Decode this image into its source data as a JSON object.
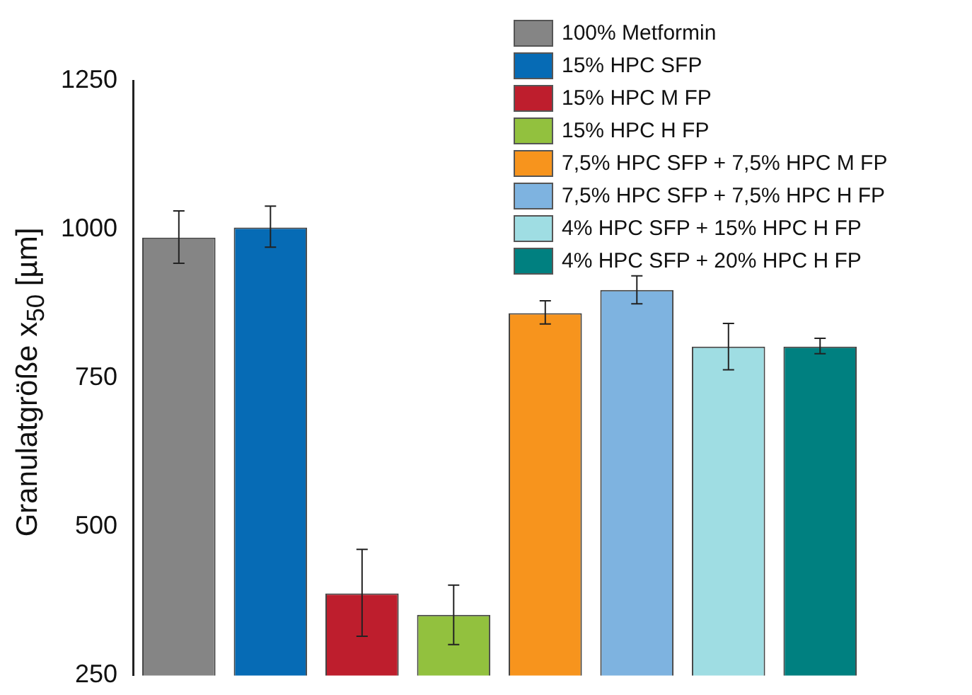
{
  "chart_data": {
    "type": "bar",
    "ylabel": "Granulatgröße x$_{50}$ [µm]",
    "categories": [
      null,
      null,
      null,
      null,
      null,
      null,
      null,
      null
    ],
    "ylim": [
      250,
      1250
    ],
    "yticks": [
      250,
      500,
      750,
      1000,
      1250
    ],
    "grid": false,
    "legend": "top right",
    "stacked": true,
    "series": [
      {
        "name": "100% Metformin",
        "color": "#858585",
        "values": [
          986,
          null,
          null,
          null,
          null,
          null,
          null,
          null
        ],
        "errors": [
          [
            943,
            1031
          ],
          null,
          null,
          null,
          null,
          null,
          null,
          null
        ]
      },
      {
        "name": "15% HPC SFP",
        "color": "#066bb5",
        "values": [
          null,
          1003,
          null,
          null,
          null,
          null,
          null,
          null
        ],
        "errors": [
          null,
          [
            970,
            1039
          ],
          null,
          null,
          null,
          null,
          null,
          null
        ]
      },
      {
        "name": "15% HPC M FP",
        "color": "#be1e2d",
        "values": [
          null,
          null,
          388,
          null,
          null,
          null,
          null,
          null
        ],
        "errors": [
          null,
          null,
          [
            316,
            462
          ],
          null,
          null,
          null,
          null,
          null
        ]
      },
      {
        "name": "15% HPC H FP",
        "color": "#92c13e",
        "values": [
          null,
          null,
          null,
          352,
          null,
          null,
          null,
          null
        ],
        "errors": [
          null,
          null,
          null,
          [
            302,
            402
          ],
          null,
          null,
          null,
          null
        ]
      },
      {
        "name": "7,5% HPC SFP + 7,5% HPC M FP",
        "color": "#f7941d",
        "values": [
          null,
          null,
          null,
          null,
          859,
          null,
          null,
          null
        ],
        "errors": [
          null,
          null,
          null,
          null,
          [
            841,
            880
          ],
          null,
          null,
          null
        ]
      },
      {
        "name": "7,5% HPC SFP + 7,5% HPC H FP",
        "color": "#7eb3e0",
        "values": [
          null,
          null,
          null,
          null,
          null,
          898,
          null,
          null
        ],
        "errors": [
          null,
          null,
          null,
          null,
          null,
          [
            875,
            922
          ],
          null,
          null
        ]
      },
      {
        "name": "4% HPC SFP + 15% HPC H FP",
        "color": "#9fdde3",
        "values": [
          null,
          null,
          null,
          null,
          null,
          null,
          803,
          null
        ],
        "errors": [
          null,
          null,
          null,
          null,
          null,
          null,
          [
            764,
            842
          ],
          null
        ]
      },
      {
        "name": "4% HPC SFP + 20% HPC H FP",
        "color": "#008080",
        "values": [
          null,
          null,
          null,
          null,
          null,
          null,
          null,
          803
        ],
        "errors": [
          null,
          null,
          null,
          null,
          null,
          null,
          null,
          [
            791,
            817
          ]
        ]
      }
    ]
  }
}
